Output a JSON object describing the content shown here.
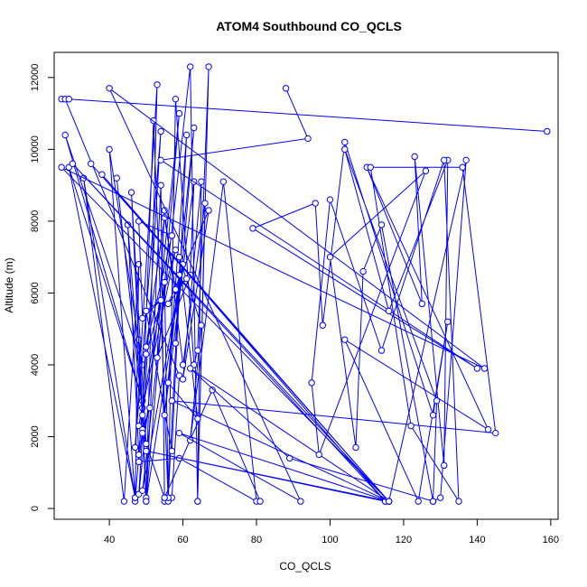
{
  "chart_data": {
    "type": "line",
    "title": "ATOM4 Southbound CO_QCLS",
    "xlabel": "CO_QCLS",
    "ylabel": "Altitude (m)",
    "xlim": [
      25,
      162
    ],
    "ylim": [
      -300,
      12700
    ],
    "xticks": [
      40,
      60,
      80,
      100,
      120,
      140,
      160
    ],
    "yticks": [
      0,
      2000,
      4000,
      6000,
      8000,
      10000,
      12000
    ],
    "grid": false,
    "legend": "none",
    "marker": "open-circle",
    "color": "#0000ff",
    "series": [
      {
        "points": [
          [
            27,
            11400
          ],
          [
            28,
            11400
          ],
          [
            59,
            3700
          ],
          [
            57,
            300
          ],
          [
            55,
            200
          ],
          [
            54,
            9000
          ],
          [
            50,
            200
          ],
          [
            48,
            4700
          ],
          [
            49,
            2800
          ],
          [
            47,
            200
          ],
          [
            48,
            6800
          ],
          [
            44,
            200
          ],
          [
            33,
            9200
          ],
          [
            47,
            300
          ],
          [
            40,
            10000
          ],
          [
            49,
            4000
          ],
          [
            28,
            10400
          ],
          [
            49,
            3000
          ],
          [
            29,
            9500
          ],
          [
            47,
            300
          ]
        ]
      },
      {
        "points": [
          [
            42,
            9200
          ],
          [
            50,
            1800
          ],
          [
            46,
            8800
          ],
          [
            50,
            300
          ],
          [
            53,
            11800
          ],
          [
            47,
            1700
          ],
          [
            54,
            10500
          ],
          [
            48,
            400
          ],
          [
            59,
            11000
          ],
          [
            50,
            200
          ],
          [
            60,
            6800
          ],
          [
            49,
            500
          ],
          [
            62,
            12300
          ],
          [
            64,
            200
          ],
          [
            67,
            12300
          ],
          [
            64,
            4400
          ],
          [
            63,
            4000
          ],
          [
            58,
            11400
          ],
          [
            56,
            200
          ],
          [
            52,
            10800
          ],
          [
            49,
            2600
          ],
          [
            45,
            7900
          ],
          [
            48,
            1500
          ],
          [
            50,
            4300
          ],
          [
            58,
            7200
          ],
          [
            48,
            2300
          ],
          [
            55,
            6300
          ],
          [
            56,
            300
          ],
          [
            59,
            6500
          ],
          [
            58,
            4600
          ],
          [
            63,
            10600
          ],
          [
            55,
            2600
          ],
          [
            63,
            9100
          ],
          [
            62,
            6500
          ],
          [
            53,
            4200
          ],
          [
            55,
            8300
          ],
          [
            60,
            4000
          ],
          [
            66,
            8500
          ],
          [
            64,
            200
          ],
          [
            65,
            9100
          ],
          [
            60,
            3600
          ],
          [
            67,
            8300
          ],
          [
            56,
            5700
          ],
          [
            61,
            6400
          ],
          [
            58,
            6100
          ],
          [
            55,
            8100
          ],
          [
            50,
            4500
          ],
          [
            57,
            7600
          ],
          [
            48,
            8000
          ],
          [
            49,
            5300
          ],
          [
            54,
            5800
          ],
          [
            50,
            5500
          ],
          [
            57,
            1600
          ],
          [
            61,
            10400
          ],
          [
            56,
            3500
          ],
          [
            64,
            2500
          ],
          [
            59,
            7000
          ],
          [
            65,
            5100
          ],
          [
            62,
            1900
          ],
          [
            71,
            9100
          ],
          [
            80,
            200
          ],
          [
            59,
            1400
          ],
          [
            48,
            1300
          ],
          [
            49,
            2200
          ],
          [
            51,
            2800
          ],
          [
            49,
            2100
          ],
          [
            55,
            300
          ],
          [
            68,
            3300
          ],
          [
            81,
            200
          ]
        ]
      },
      {
        "points": [
          [
            35,
            9600
          ],
          [
            116,
            200
          ],
          [
            30,
            9600
          ],
          [
            115,
            200
          ],
          [
            38,
            9300
          ],
          [
            116,
            200
          ],
          [
            27,
            9500
          ],
          [
            142,
            3900
          ],
          [
            40,
            11700
          ],
          [
            92,
            200
          ],
          [
            59,
            2100
          ],
          [
            116,
            200
          ],
          [
            62,
            3900
          ],
          [
            89,
            1400
          ],
          [
            128,
            200
          ],
          [
            130,
            300
          ],
          [
            137,
            9700
          ],
          [
            116,
            200
          ],
          [
            50,
            1600
          ],
          [
            115,
            200
          ]
        ]
      },
      {
        "points": [
          [
            88,
            11700
          ],
          [
            94,
            10300
          ],
          [
            54,
            9700
          ],
          [
            140,
            3900
          ],
          [
            79,
            7800
          ],
          [
            96,
            8500
          ],
          [
            98,
            5100
          ],
          [
            104,
            10200
          ],
          [
            128,
            2600
          ],
          [
            132,
            5200
          ],
          [
            124,
            200
          ],
          [
            104,
            4700
          ],
          [
            143,
            2200
          ],
          [
            110,
            9500
          ],
          [
            125,
            5700
          ],
          [
            123,
            9800
          ],
          [
            131,
            1200
          ],
          [
            132,
            9700
          ],
          [
            116,
            5500
          ],
          [
            104,
            10000
          ],
          [
            129,
            3000
          ],
          [
            128,
            200
          ],
          [
            114,
            7900
          ],
          [
            109,
            6600
          ],
          [
            107,
            1700
          ],
          [
            100,
            7000
          ],
          [
            126,
            9400
          ],
          [
            97,
            1500
          ],
          [
            95,
            3500
          ],
          [
            100,
            8600
          ],
          [
            114,
            4400
          ],
          [
            131,
            9700
          ],
          [
            135,
            200
          ],
          [
            122,
            2300
          ],
          [
            111,
            9500
          ],
          [
            136,
            9500
          ],
          [
            145,
            2100
          ],
          [
            57,
            3000
          ],
          [
            116,
            200
          ]
        ]
      },
      {
        "points": [
          [
            159,
            10500
          ],
          [
            29,
            11400
          ]
        ]
      }
    ]
  }
}
